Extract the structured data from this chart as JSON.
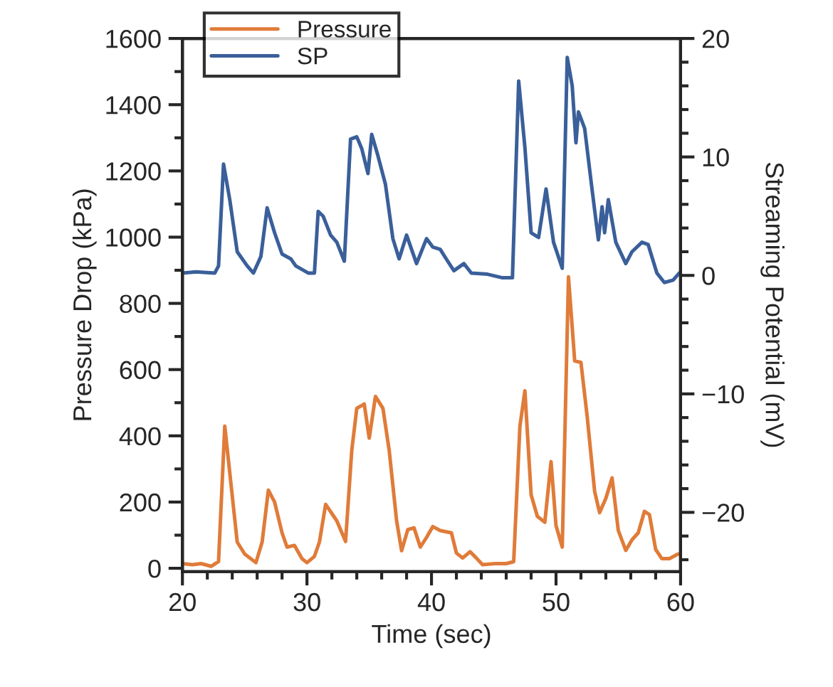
{
  "chart_data": {
    "type": "line",
    "xlabel": "Time (sec)",
    "ylabel": "Pressure Drop (kPa)",
    "y2label": "Streaming Potential (mV)",
    "xlim": [
      20,
      60
    ],
    "ylim": [
      -10,
      1600
    ],
    "y2lim": [
      -25,
      20
    ],
    "xticks": [
      20,
      {
        "value": 22,
        "label": null
      },
      {
        "value": 24,
        "label": null
      },
      {
        "value": 26,
        "label": null
      },
      {
        "value": 28,
        "label": null
      },
      30,
      {
        "value": 32,
        "label": null
      },
      {
        "value": 34,
        "label": null
      },
      {
        "value": 36,
        "label": null
      },
      {
        "value": 38,
        "label": null
      },
      40,
      {
        "value": 42,
        "label": null
      },
      {
        "value": 44,
        "label": null
      },
      {
        "value": 46,
        "label": null
      },
      {
        "value": 48,
        "label": null
      },
      50,
      {
        "value": 52,
        "label": null
      },
      {
        "value": 54,
        "label": null
      },
      {
        "value": 56,
        "label": null
      },
      {
        "value": 58,
        "label": null
      },
      60
    ],
    "yticks": [
      0,
      {
        "value": 100,
        "label": null
      },
      200,
      {
        "value": 300,
        "label": null
      },
      400,
      {
        "value": 500,
        "label": null
      },
      600,
      {
        "value": 700,
        "label": null
      },
      800,
      {
        "value": 900,
        "label": null
      },
      1000,
      {
        "value": 1100,
        "label": null
      },
      1200,
      {
        "value": 1300,
        "label": null
      },
      1400,
      {
        "value": 1500,
        "label": null
      },
      1600
    ],
    "y2ticks": [
      {
        "value": -24,
        "label": null
      },
      {
        "value": -22,
        "label": null
      },
      {
        "value": -20,
        "label": "−20"
      },
      {
        "value": -18,
        "label": null
      },
      {
        "value": -16,
        "label": null
      },
      {
        "value": -14,
        "label": null
      },
      {
        "value": -12,
        "label": null
      },
      {
        "value": -10,
        "label": "−10"
      },
      {
        "value": -8,
        "label": null
      },
      {
        "value": -6,
        "label": null
      },
      {
        "value": -4,
        "label": null
      },
      {
        "value": -2,
        "label": null
      },
      0,
      {
        "value": 2,
        "label": null
      },
      {
        "value": 4,
        "label": null
      },
      {
        "value": 6,
        "label": null
      },
      {
        "value": 8,
        "label": null
      },
      10,
      {
        "value": 12,
        "label": null
      },
      {
        "value": 14,
        "label": null
      },
      {
        "value": 16,
        "label": null
      },
      {
        "value": 18,
        "label": null
      },
      20
    ],
    "legend": "top left",
    "grid": false,
    "marker": "none",
    "line_style": "solid",
    "series": [
      {
        "name": "Pressure",
        "color": "#e07b39",
        "x": [
          20.0,
          20.8,
          21.5,
          22.3,
          22.9,
          23.4,
          24.4,
          25.0,
          25.9,
          26.4,
          26.9,
          27.4,
          28.0,
          28.4,
          29.0,
          29.6,
          30.0,
          30.6,
          31.0,
          31.5,
          32.4,
          33.1,
          33.6,
          34.0,
          34.6,
          35.0,
          35.5,
          36.1,
          36.6,
          37.2,
          37.6,
          38.1,
          38.6,
          39.1,
          39.6,
          40.1,
          40.7,
          41.6,
          42.0,
          42.5,
          43.1,
          43.6,
          44.1,
          45.1,
          46.0,
          46.6,
          47.1,
          47.5,
          48.0,
          48.5,
          49.1,
          49.6,
          50.0,
          50.5,
          51.0,
          51.5,
          52.0,
          52.5,
          53.1,
          53.5,
          54.0,
          54.5,
          55.0,
          55.6,
          56.1,
          56.6,
          57.1,
          57.5,
          58.0,
          58.5,
          59.1,
          59.8
        ],
        "values": [
          14,
          11,
          14,
          6,
          20,
          429,
          79,
          43,
          17,
          79,
          236,
          200,
          107,
          64,
          69,
          29,
          17,
          36,
          79,
          193,
          143,
          81,
          357,
          483,
          496,
          393,
          519,
          483,
          357,
          143,
          53,
          117,
          122,
          64,
          93,
          126,
          114,
          107,
          46,
          31,
          50,
          31,
          11,
          14,
          14,
          20,
          429,
          536,
          222,
          157,
          139,
          322,
          129,
          64,
          880,
          626,
          622,
          459,
          232,
          168,
          211,
          273,
          114,
          54,
          86,
          107,
          172,
          162,
          57,
          29,
          29,
          43
        ]
      },
      {
        "name": "SP",
        "color": "#3a5f9a",
        "axis": "y2",
        "x": [
          20.0,
          21.1,
          22.6,
          22.9,
          23.3,
          23.8,
          24.4,
          25.2,
          25.7,
          26.3,
          26.8,
          27.4,
          28.0,
          28.7,
          29.1,
          30.1,
          30.6,
          30.9,
          31.3,
          31.9,
          32.4,
          33.0,
          33.5,
          34.0,
          34.4,
          34.9,
          35.2,
          35.7,
          36.3,
          36.9,
          37.4,
          38.0,
          38.8,
          39.6,
          40.1,
          40.7,
          41.3,
          41.8,
          42.6,
          43.2,
          44.5,
          45.7,
          46.5,
          47.0,
          47.5,
          48.0,
          48.6,
          49.2,
          49.8,
          50.5,
          50.9,
          51.3,
          51.6,
          51.8,
          52.3,
          52.9,
          53.4,
          53.7,
          53.9,
          54.2,
          54.8,
          55.6,
          56.1,
          56.9,
          57.4,
          58.1,
          58.7,
          59.4,
          59.9
        ],
        "values": [
          0.2,
          0.3,
          0.2,
          0.8,
          9.4,
          6.4,
          2.0,
          0.8,
          0.2,
          1.6,
          5.7,
          3.6,
          1.8,
          1.4,
          0.8,
          0.2,
          0.2,
          5.4,
          5.0,
          3.4,
          2.8,
          1.2,
          11.5,
          11.7,
          10.7,
          8.6,
          11.9,
          10.1,
          7.7,
          3.1,
          1.4,
          3.4,
          1.0,
          3.1,
          2.4,
          2.2,
          1.2,
          0.4,
          1.0,
          0.2,
          0.1,
          -0.2,
          -0.2,
          16.4,
          10.8,
          3.6,
          3.2,
          7.3,
          2.8,
          0.6,
          18.4,
          16.0,
          11.2,
          13.8,
          12.4,
          7.2,
          3.0,
          5.8,
          3.6,
          6.4,
          2.8,
          1.0,
          2.0,
          2.8,
          2.6,
          0.2,
          -0.6,
          -0.4,
          0.2
        ]
      }
    ]
  }
}
